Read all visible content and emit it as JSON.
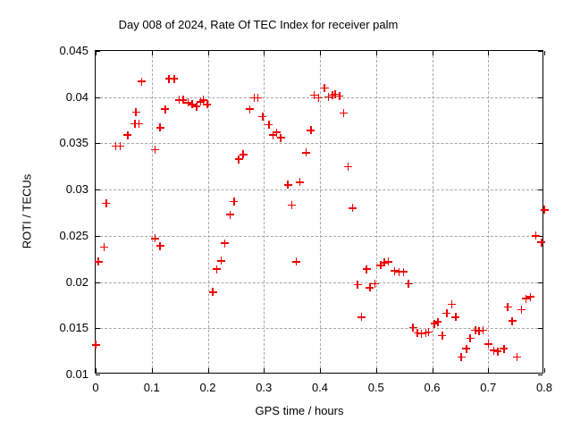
{
  "chart_data": {
    "type": "scatter",
    "title": "Day 008 of 2024, Rate Of TEC Index for receiver palm",
    "xlabel": "GPS time / hours",
    "ylabel": "ROTI / TECUs",
    "xlim": [
      0,
      0.8
    ],
    "ylim": [
      0.01,
      0.045
    ],
    "xticks": [
      {
        "label": "0",
        "value": 0.0
      },
      {
        "label": "0.1",
        "value": 0.1
      },
      {
        "label": "0.2",
        "value": 0.2
      },
      {
        "label": "0.3",
        "value": 0.3
      },
      {
        "label": "0.4",
        "value": 0.4
      },
      {
        "label": "0.5",
        "value": 0.5
      },
      {
        "label": "0.6",
        "value": 0.6
      },
      {
        "label": "0.7",
        "value": 0.7
      },
      {
        "label": "0.8",
        "value": 0.8
      }
    ],
    "yticks": [
      {
        "label": "0.01",
        "value": 0.01
      },
      {
        "label": "0.015",
        "value": 0.015
      },
      {
        "label": "0.02",
        "value": 0.02
      },
      {
        "label": "0.025",
        "value": 0.025
      },
      {
        "label": "0.03",
        "value": 0.03
      },
      {
        "label": "0.035",
        "value": 0.035
      },
      {
        "label": "0.04",
        "value": 0.04
      },
      {
        "label": "0.045",
        "value": 0.045
      }
    ],
    "grid": true,
    "legend": false,
    "marker": "plus",
    "marker_color": "#ee0000",
    "grid_color": "#a6a6a6",
    "border_color": "#000000",
    "background_color": "#ffffff",
    "points": [
      [
        0.0,
        0.0132
      ],
      [
        0.005,
        0.0222
      ],
      [
        0.015,
        0.0238
      ],
      [
        0.019,
        0.0285
      ],
      [
        0.036,
        0.0347
      ],
      [
        0.044,
        0.0347
      ],
      [
        0.057,
        0.0359
      ],
      [
        0.07,
        0.0371
      ],
      [
        0.072,
        0.0384
      ],
      [
        0.077,
        0.0371
      ],
      [
        0.082,
        0.0417
      ],
      [
        0.106,
        0.0343
      ],
      [
        0.106,
        0.0247
      ],
      [
        0.115,
        0.0239
      ],
      [
        0.115,
        0.0367
      ],
      [
        0.124,
        0.0387
      ],
      [
        0.131,
        0.042
      ],
      [
        0.14,
        0.042
      ],
      [
        0.149,
        0.0397
      ],
      [
        0.156,
        0.0397
      ],
      [
        0.165,
        0.0394
      ],
      [
        0.172,
        0.0392
      ],
      [
        0.18,
        0.039
      ],
      [
        0.187,
        0.0395
      ],
      [
        0.192,
        0.0397
      ],
      [
        0.199,
        0.0392
      ],
      [
        0.209,
        0.0189
      ],
      [
        0.216,
        0.0214
      ],
      [
        0.224,
        0.0223
      ],
      [
        0.23,
        0.0242
      ],
      [
        0.24,
        0.0273
      ],
      [
        0.247,
        0.0287
      ],
      [
        0.255,
        0.0333
      ],
      [
        0.263,
        0.0338
      ],
      [
        0.275,
        0.0387
      ],
      [
        0.283,
        0.0399
      ],
      [
        0.289,
        0.0399
      ],
      [
        0.298,
        0.0379
      ],
      [
        0.309,
        0.037
      ],
      [
        0.316,
        0.0359
      ],
      [
        0.323,
        0.0362
      ],
      [
        0.33,
        0.0356
      ],
      [
        0.343,
        0.0305
      ],
      [
        0.35,
        0.0283
      ],
      [
        0.358,
        0.0222
      ],
      [
        0.364,
        0.0308
      ],
      [
        0.375,
        0.034
      ],
      [
        0.384,
        0.0364
      ],
      [
        0.39,
        0.0402
      ],
      [
        0.398,
        0.0399
      ],
      [
        0.408,
        0.041
      ],
      [
        0.415,
        0.04
      ],
      [
        0.422,
        0.0402
      ],
      [
        0.427,
        0.0403
      ],
      [
        0.435,
        0.0401
      ],
      [
        0.442,
        0.0383
      ],
      [
        0.45,
        0.0325
      ],
      [
        0.458,
        0.028
      ],
      [
        0.467,
        0.0197
      ],
      [
        0.474,
        0.0162
      ],
      [
        0.483,
        0.0214
      ],
      [
        0.489,
        0.0194
      ],
      [
        0.498,
        0.0198
      ],
      [
        0.508,
        0.0218
      ],
      [
        0.515,
        0.0221
      ],
      [
        0.522,
        0.0222
      ],
      [
        0.533,
        0.0212
      ],
      [
        0.541,
        0.0211
      ],
      [
        0.549,
        0.0211
      ],
      [
        0.558,
        0.0198
      ],
      [
        0.566,
        0.0151
      ],
      [
        0.574,
        0.0145
      ],
      [
        0.581,
        0.0144
      ],
      [
        0.589,
        0.0145
      ],
      [
        0.594,
        0.0146
      ],
      [
        0.604,
        0.0155
      ],
      [
        0.61,
        0.0157
      ],
      [
        0.618,
        0.0142
      ],
      [
        0.626,
        0.0166
      ],
      [
        0.635,
        0.0176
      ],
      [
        0.642,
        0.0162
      ],
      [
        0.652,
        0.0119
      ],
      [
        0.661,
        0.0128
      ],
      [
        0.668,
        0.0139
      ],
      [
        0.677,
        0.0148
      ],
      [
        0.684,
        0.0147
      ],
      [
        0.691,
        0.0148
      ],
      [
        0.7,
        0.0133
      ],
      [
        0.71,
        0.0126
      ],
      [
        0.717,
        0.0125
      ],
      [
        0.728,
        0.0128
      ],
      [
        0.735,
        0.0173
      ],
      [
        0.743,
        0.0158
      ],
      [
        0.751,
        0.0119
      ],
      [
        0.759,
        0.017
      ],
      [
        0.767,
        0.0182
      ],
      [
        0.775,
        0.0184
      ],
      [
        0.785,
        0.025
      ],
      [
        0.795,
        0.0243
      ],
      [
        0.8,
        0.0278
      ]
    ]
  }
}
